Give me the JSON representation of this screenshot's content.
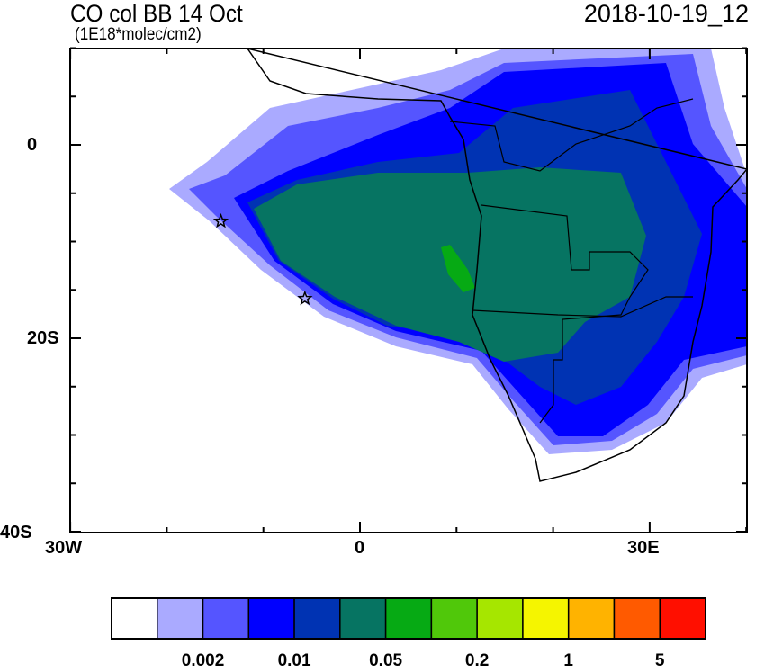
{
  "title": "CO col BB 14 Oct",
  "units": "(1E18*molec/cm2)",
  "datetime": "2018-10-19_12",
  "axes": {
    "x_labels": [
      "30W",
      "0",
      "30E"
    ],
    "y_labels": [
      "0",
      "20S",
      "40S"
    ],
    "lon_range": [
      -30,
      40
    ],
    "lat_range": [
      -40,
      10
    ]
  },
  "colorbar": {
    "colors": [
      "#ffffff",
      "#aaaaff",
      "#5555ff",
      "#0000ff",
      "#0033b3",
      "#067462",
      "#06aa14",
      "#50c80a",
      "#a6e600",
      "#f5f500",
      "#ffb300",
      "#ff5a00",
      "#ff0f00"
    ],
    "labels": [
      "0.002",
      "0.01",
      "0.05",
      "0.2",
      "1",
      "5"
    ]
  },
  "markers": [
    {
      "type": "star",
      "lon": -14.4,
      "lat": -7.9
    },
    {
      "type": "star",
      "lon": -5.7,
      "lat": -15.9
    }
  ]
}
